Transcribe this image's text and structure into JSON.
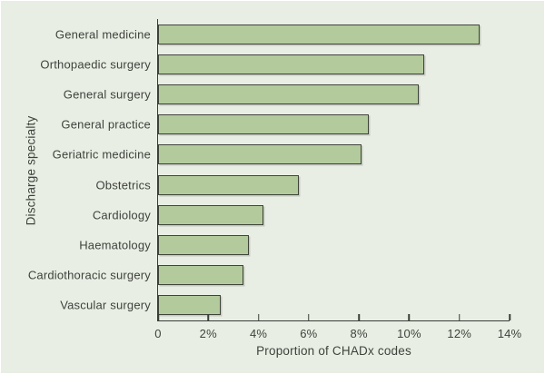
{
  "chart_data": {
    "type": "bar",
    "orientation": "horizontal",
    "title": "",
    "categories": [
      "General medicine",
      "Orthopaedic surgery",
      "General surgery",
      "General practice",
      "Geriatric medicine",
      "Obstetrics",
      "Cardiology",
      "Haematology",
      "Cardiothoracic surgery",
      "Vascular surgery"
    ],
    "values": [
      12.8,
      10.6,
      10.4,
      8.4,
      8.1,
      5.6,
      4.2,
      3.6,
      3.4,
      2.5
    ],
    "xlabel": "Proportion of CHADx codes",
    "ylabel": "Discharge specialty",
    "xlim": [
      0,
      14
    ],
    "x_ticks": [
      {
        "value": 0,
        "label": "0"
      },
      {
        "value": 2,
        "label": "2%"
      },
      {
        "value": 4,
        "label": "4%"
      },
      {
        "value": 6,
        "label": "6%"
      },
      {
        "value": 8,
        "label": "8%"
      },
      {
        "value": 10,
        "label": "10%"
      },
      {
        "value": 12,
        "label": "12%"
      },
      {
        "value": 14,
        "label": "14%"
      }
    ],
    "grid": false,
    "legend": "none",
    "colors": {
      "background": "#e9eee4",
      "bar_fill": "#b3cb9c",
      "bar_border": "#3f443a",
      "axis": "#383d36",
      "text": "#3e423c"
    }
  }
}
